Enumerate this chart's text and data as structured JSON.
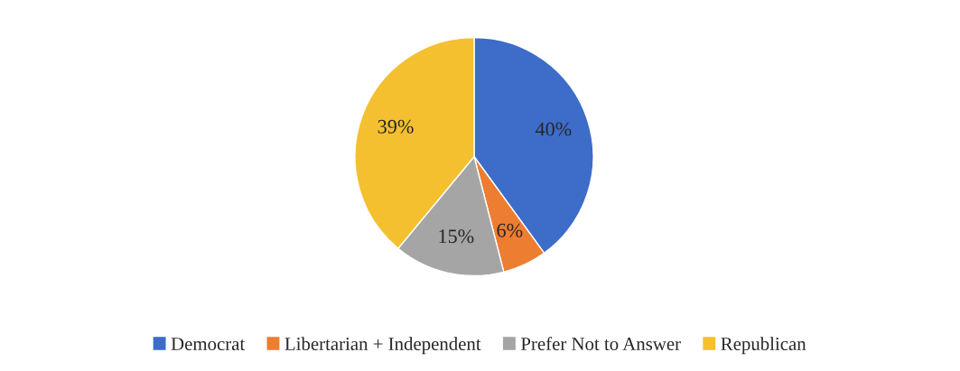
{
  "chart_data": {
    "type": "pie",
    "categories": [
      "Democrat",
      "Libertarian + Independent",
      "Prefer Not to Answer",
      "Republican"
    ],
    "values": [
      40,
      6,
      15,
      39
    ],
    "colors": [
      "#3d6cc9",
      "#ed7d31",
      "#a5a5a5",
      "#f4c030"
    ],
    "value_labels": [
      "40%",
      "6%",
      "15%",
      "39%"
    ],
    "legend": "bottom"
  }
}
